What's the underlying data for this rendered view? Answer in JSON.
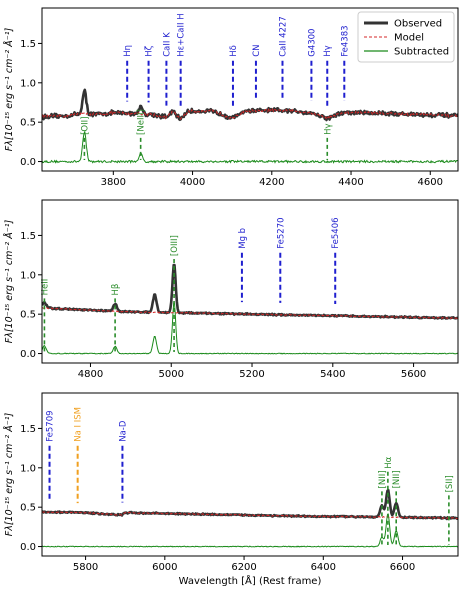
{
  "chart_data": [
    {
      "type": "line",
      "panel": 1,
      "xlim": [
        3620,
        4670
      ],
      "ylim": [
        -0.12,
        1.95
      ],
      "xticks": [
        3800,
        4000,
        4200,
        4400,
        4600
      ],
      "xtick_labels": [
        "3800",
        "4000",
        "4200",
        "4400",
        "4600"
      ],
      "yticks": [
        0.0,
        0.5,
        1.0,
        1.5
      ],
      "ytick_labels": [
        "0.0",
        "0.5",
        "1.0",
        "1.5"
      ],
      "ylabel": "Fλ[10⁻¹⁵ erg s⁻¹ cm⁻² Å⁻¹]",
      "legend": {
        "placement": "top-right",
        "entries": [
          {
            "label": "Observed",
            "color": "#333333",
            "style": "solid-thick"
          },
          {
            "label": "Model",
            "color": "#d62728",
            "style": "dashed"
          },
          {
            "label": "Subtracted",
            "color": "#1a8a1a",
            "style": "solid"
          }
        ]
      },
      "continuum_points": {
        "x": [
          3620,
          3680,
          3720,
          3760,
          3800,
          3850,
          3900,
          3934,
          3950,
          3968,
          3990,
          4050,
          4102,
          4130,
          4200,
          4260,
          4300,
          4340,
          4380,
          4450,
          4550,
          4670
        ],
        "y": [
          0.57,
          0.58,
          0.61,
          0.6,
          0.62,
          0.61,
          0.6,
          0.56,
          0.64,
          0.54,
          0.64,
          0.64,
          0.55,
          0.64,
          0.65,
          0.64,
          0.62,
          0.55,
          0.62,
          0.62,
          0.6,
          0.58
        ]
      },
      "emission_lines": [
        {
          "label": "[OII]",
          "x": 3727,
          "observed_peak": 0.9,
          "subtracted_peak": 0.38
        },
        {
          "label": "[NeIII]",
          "x": 3869,
          "observed_peak": 0.7,
          "subtracted_peak": 0.1
        }
      ],
      "absorption_markers": [
        {
          "label": "Hη",
          "x": 3835
        },
        {
          "label": "Hζ",
          "x": 3889
        },
        {
          "label": "CaII K",
          "x": 3934
        },
        {
          "label": "Hε+CaII H",
          "x": 3970
        },
        {
          "label": "Hδ",
          "x": 4102
        },
        {
          "label": "CN",
          "x": 4160
        },
        {
          "label": "CaII 4227",
          "x": 4227
        },
        {
          "label": "G4300",
          "x": 4300
        },
        {
          "label": "Hγ",
          "x": 4340
        },
        {
          "label": "Fe4383",
          "x": 4383
        }
      ],
      "emission_markers": [
        {
          "label": "[OII]",
          "x": 3727
        },
        {
          "label": "[NeIII]",
          "x": 3869
        },
        {
          "label": "Hγ",
          "x": 4340
        }
      ],
      "colors": {
        "observed": "#333333",
        "model": "#d62728",
        "subtracted": "#1a8a1a",
        "absorption_marker": "#1f1fcf",
        "emission_marker": "#2a8c2a",
        "ism_marker": "#f0a020"
      }
    },
    {
      "type": "line",
      "panel": 2,
      "xlim": [
        4680,
        5710
      ],
      "ylim": [
        -0.12,
        1.95
      ],
      "xticks": [
        4800,
        5000,
        5200,
        5400,
        5600
      ],
      "xtick_labels": [
        "4800",
        "5000",
        "5200",
        "5400",
        "5600"
      ],
      "yticks": [
        0.0,
        0.5,
        1.0,
        1.5
      ],
      "ytick_labels": [
        "0.0",
        "0.5",
        "1.0",
        "1.5"
      ],
      "ylabel": "Fλ[10⁻¹⁵ erg s⁻¹ cm⁻² Å⁻¹]",
      "continuum_points": {
        "x": [
          4680,
          4800,
          4900,
          5000,
          5100,
          5200,
          5300,
          5400,
          5500,
          5600,
          5710
        ],
        "y": [
          0.58,
          0.55,
          0.53,
          0.52,
          0.51,
          0.5,
          0.49,
          0.48,
          0.47,
          0.46,
          0.45
        ]
      },
      "emission_lines": [
        {
          "label": "HeII",
          "x": 4686,
          "observed_peak": 0.65,
          "subtracted_peak": 0.1
        },
        {
          "label": "Hβ",
          "x": 4861,
          "observed_peak": 0.63,
          "subtracted_peak": 0.09
        },
        {
          "label": "[OIII] 4959",
          "x": 4959,
          "observed_peak": 0.75,
          "subtracted_peak": 0.22
        },
        {
          "label": "[OIII] 5007",
          "x": 5007,
          "observed_peak": 1.14,
          "subtracted_peak": 0.66
        }
      ],
      "absorption_markers": [
        {
          "label": "Mg b",
          "x": 5175
        },
        {
          "label": "Fe5270",
          "x": 5270
        },
        {
          "label": "Fe5406",
          "x": 5406
        }
      ],
      "emission_markers": [
        {
          "label": "HeII",
          "x": 4686
        },
        {
          "label": "Hβ",
          "x": 4861
        },
        {
          "label": "[OIII]",
          "x": 5007
        }
      ]
    },
    {
      "type": "line",
      "panel": 3,
      "xlim": [
        5690,
        6740
      ],
      "ylim": [
        -0.12,
        1.95
      ],
      "xticks": [
        5800,
        6000,
        6200,
        6400,
        6600
      ],
      "xtick_labels": [
        "5800",
        "6000",
        "6200",
        "6400",
        "6600"
      ],
      "yticks": [
        0.0,
        0.5,
        1.0,
        1.5
      ],
      "ytick_labels": [
        "0.0",
        "0.5",
        "1.0",
        "1.5"
      ],
      "xlabel": "Wavelength [Å] (Rest frame)",
      "ylabel": "Fλ[10⁻¹⁵ erg s⁻¹ cm⁻² Å⁻¹]",
      "continuum_points": {
        "x": [
          5690,
          5800,
          5890,
          5900,
          6000,
          6100,
          6200,
          6300,
          6400,
          6500,
          6600,
          6740
        ],
        "y": [
          0.44,
          0.43,
          0.4,
          0.43,
          0.42,
          0.41,
          0.4,
          0.39,
          0.38,
          0.38,
          0.37,
          0.36
        ]
      },
      "emission_lines": [
        {
          "label": "[NII] 6548",
          "x": 6548,
          "observed_peak": 0.52,
          "subtracted_peak": 0.12
        },
        {
          "label": "Hα",
          "x": 6563,
          "observed_peak": 0.72,
          "subtracted_peak": 0.42
        },
        {
          "label": "[NII] 6584",
          "x": 6584,
          "observed_peak": 0.55,
          "subtracted_peak": 0.2
        }
      ],
      "absorption_markers": [
        {
          "label": "Fe5709",
          "x": 5709
        },
        {
          "label": "Na-D",
          "x": 5893
        }
      ],
      "ism_markers": [
        {
          "label": "Na I ISM",
          "x": 5780
        }
      ],
      "emission_markers": [
        {
          "label": "[NII]",
          "x": 6548
        },
        {
          "label": "Hα",
          "x": 6563
        },
        {
          "label": "[NII]",
          "x": 6584
        },
        {
          "label": "[SII]",
          "x": 6717
        }
      ]
    }
  ]
}
